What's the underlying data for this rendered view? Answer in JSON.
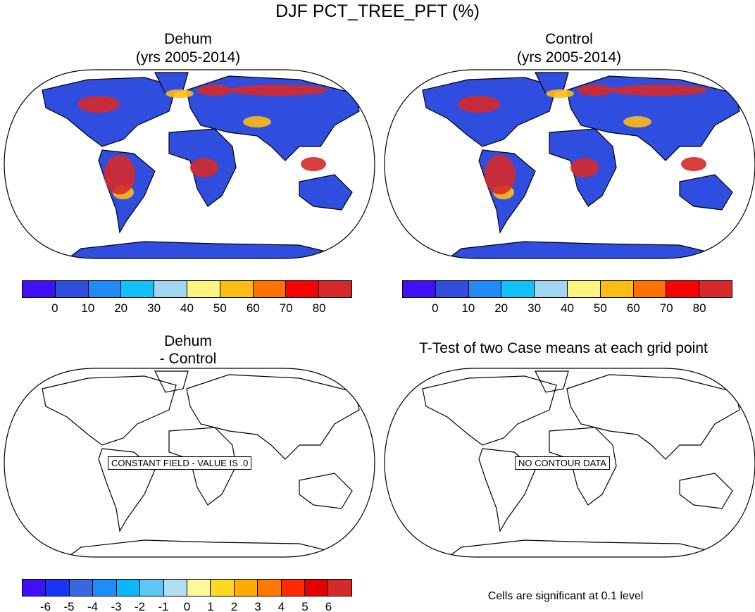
{
  "title": "DJF PCT_TREE_PFT (%)",
  "panels": {
    "dehum": {
      "title": "Dehum",
      "subtitle": "(yrs 2005-2014)"
    },
    "control": {
      "title": "Control",
      "subtitle": "(yrs 2005-2014)"
    },
    "diff": {
      "title": "Dehum",
      "subtitle": "- Control",
      "message": "CONSTANT FIELD - VALUE IS .0"
    },
    "ttest": {
      "title": "T-Test of two Case means at each grid point",
      "message": "NO CONTOUR DATA",
      "footnote": "Cells are significant at 0.1 level"
    }
  },
  "colorbar_main": {
    "colors": [
      "#3f0ff5",
      "#2f4ddf",
      "#2189f8",
      "#12c0fb",
      "#a2d6f0",
      "#fff47f",
      "#ffbd13",
      "#ff7100",
      "#fa0000",
      "#d62a2a"
    ],
    "labels": [
      "0",
      "10",
      "20",
      "30",
      "40",
      "50",
      "60",
      "70",
      "80"
    ]
  },
  "colorbar_diff": {
    "colors": [
      "#3f0ff5",
      "#1a34f5",
      "#3a66e2",
      "#1f8cf7",
      "#0bb6fb",
      "#5ec6f5",
      "#b2ddf5",
      "#fff79a",
      "#ffd824",
      "#ffab00",
      "#ff7800",
      "#ff2a00",
      "#e30000",
      "#d62a2a"
    ],
    "labels": [
      "-6",
      "-5",
      "-4",
      "-3",
      "-2",
      "-1",
      "0",
      "1",
      "2",
      "3",
      "4",
      "5",
      "6"
    ]
  }
}
